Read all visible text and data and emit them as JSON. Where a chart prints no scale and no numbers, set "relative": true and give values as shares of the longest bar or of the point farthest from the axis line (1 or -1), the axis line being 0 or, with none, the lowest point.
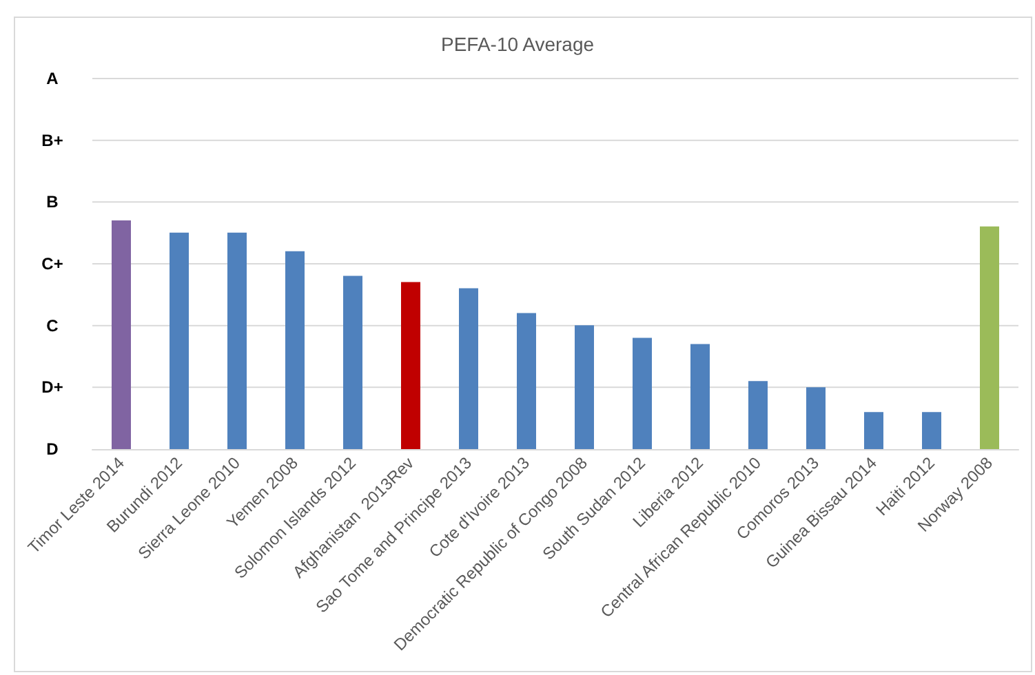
{
  "chart_data": {
    "type": "bar",
    "title": "PEFA-10 Average",
    "categories": [
      "Timor Leste 2014",
      "Burundi 2012",
      "Sierra Leone 2010",
      "Yemen 2008",
      "Solomon Islands 2012",
      "Afghanistan  2013Rev",
      "Sao Tome and Principe 2013",
      "Cote d'Ivoire 2013",
      "Democratic Republic of Congo 2008",
      "South Sudan 2012",
      "Liberia 2012",
      "Central African Republic 2010",
      "Comoros 2013",
      "Guinea Bissau 2014",
      "Haiti 2012",
      "Norway 2008"
    ],
    "values": [
      1.0,
      0.946,
      0.946,
      0.865,
      0.757,
      0.73,
      0.703,
      0.595,
      0.541,
      0.486,
      0.459,
      0.297,
      0.27,
      0.162,
      0.162,
      0.973
    ],
    "colors": [
      "#8064a2",
      "#4f81bd",
      "#4f81bd",
      "#4f81bd",
      "#4f81bd",
      "#c00000",
      "#4f81bd",
      "#4f81bd",
      "#4f81bd",
      "#4f81bd",
      "#4f81bd",
      "#4f81bd",
      "#4f81bd",
      "#4f81bd",
      "#4f81bd",
      "#9bbb59"
    ],
    "relative": true,
    "annotations": [
      "A",
      "B+",
      "B",
      "C+",
      "C",
      "D+",
      "D"
    ],
    "grid": "y"
  }
}
